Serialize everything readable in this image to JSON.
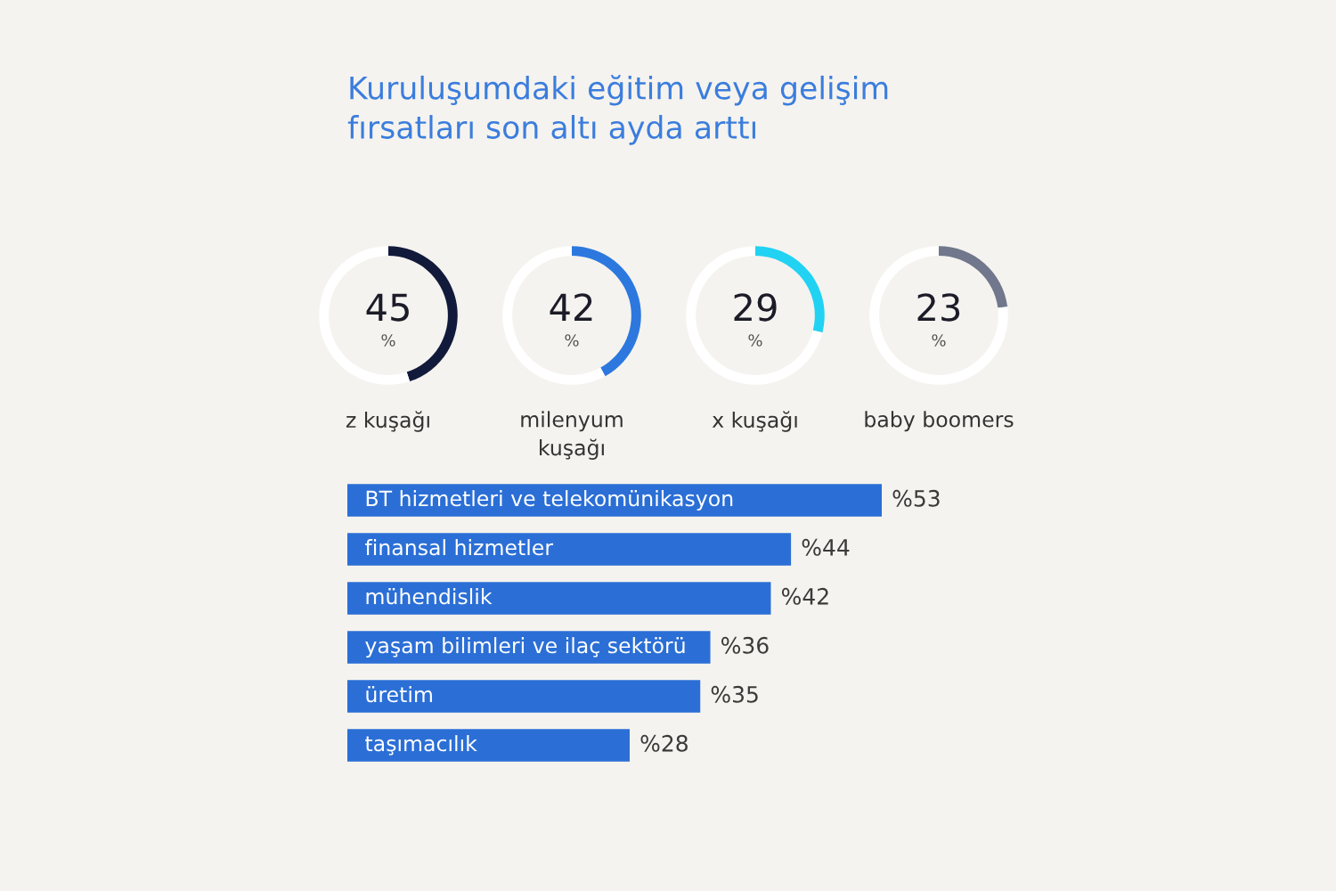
{
  "chart_data": [
    {
      "type": "donut",
      "title": "Kuruluşumdaki eğitim veya gelişim\nfırsatları son altı ayda arttı",
      "xlabel": "z kuşağı",
      "categories": [
        null,
        null
      ],
      "values": [
        45,
        55
      ],
      "colors": [
        "#121a3c",
        "#ffffff"
      ],
      "annotations": [
        "45\n%"
      ]
    },
    {
      "type": "donut",
      "xlabel": "milenyum\nkuşağı",
      "categories": [
        null,
        null
      ],
      "values": [
        42,
        58
      ],
      "colors": [
        "#2d78df",
        "#ffffff"
      ],
      "annotations": [
        "42\n%"
      ]
    },
    {
      "type": "donut",
      "xlabel": "x kuşağı",
      "categories": [
        null,
        null
      ],
      "values": [
        29,
        71
      ],
      "colors": [
        "#22d2f3",
        "#ffffff"
      ],
      "annotations": [
        "29\n%"
      ]
    },
    {
      "type": "donut",
      "xlabel": "baby boomers",
      "categories": [
        null,
        null
      ],
      "values": [
        23,
        77
      ],
      "colors": [
        "#71778c",
        "#ffffff"
      ],
      "annotations": [
        "23\n%"
      ]
    },
    {
      "type": "bar",
      "orientation": "horizontal",
      "categories": [
        "BT hizmetleri ve telekomünikasyon",
        "finansal hizmetler",
        "mühendislik",
        "yaşam bilimleri ve ilaç sektörü",
        "üretim",
        "taşımacılık"
      ],
      "values": [
        53,
        44,
        42,
        36,
        35,
        28
      ],
      "color": "#2b6fd6",
      "value_labels": [
        "%53",
        "%44",
        "%42",
        "%36",
        "%35",
        "%28"
      ]
    }
  ]
}
